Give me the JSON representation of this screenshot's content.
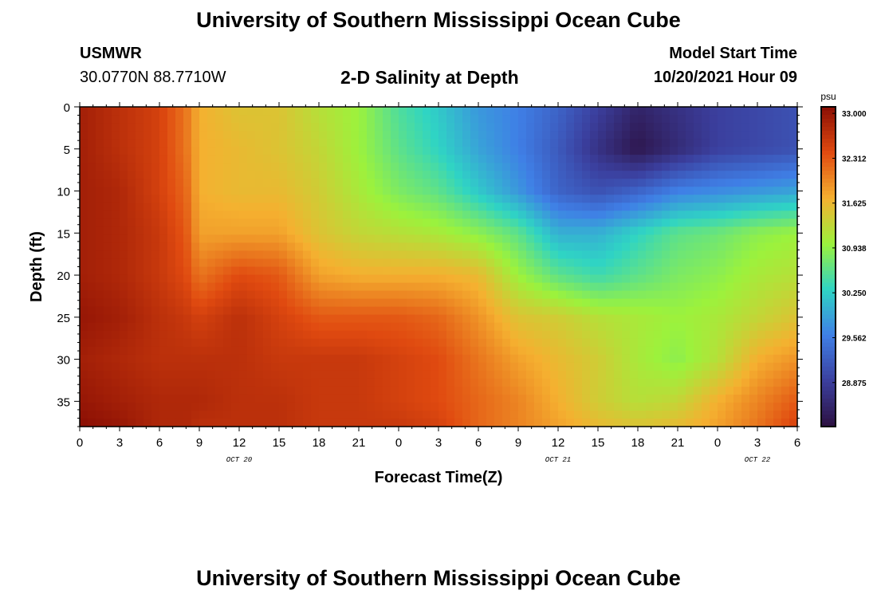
{
  "header": {
    "title": "University of Southern Mississippi Ocean Cube",
    "station": "USMWR",
    "coords": "30.0770N  88.7710W",
    "subtitle": "2-D Salinity at Depth",
    "model_start_label": "Model Start Time",
    "model_start_value": "10/20/2021 Hour 09"
  },
  "footer": {
    "title": "University of Southern Mississippi Ocean Cube"
  },
  "chart_data": {
    "type": "heatmap",
    "title": "2-D Salinity at Depth",
    "xlabel": "Forecast Time(Z)",
    "ylabel": "Depth (ft)",
    "x_ticks": [
      "0",
      "3",
      "6",
      "9",
      "12",
      "15",
      "18",
      "21",
      "0",
      "3",
      "6",
      "9",
      "12",
      "15",
      "18",
      "21",
      "0",
      "3",
      "6"
    ],
    "x_range_hours": [
      0,
      54
    ],
    "date_labels": [
      {
        "label": "OCT 20",
        "hour": 12
      },
      {
        "label": "OCT 21",
        "hour": 36
      },
      {
        "label": "OCT 22",
        "hour": 51
      }
    ],
    "y_ticks": [
      0,
      5,
      10,
      15,
      20,
      25,
      30,
      35
    ],
    "ylim": [
      0,
      38
    ],
    "y_inverted": true,
    "colorbar": {
      "unit": "psu",
      "ticks": [
        "33.000",
        "32.312",
        "31.625",
        "30.938",
        "30.250",
        "29.562",
        "28.875"
      ],
      "range": [
        28.2,
        33.1
      ],
      "colors": [
        "#2c1040",
        "#3b3f9e",
        "#3f7fe6",
        "#2fd4c4",
        "#9cf23c",
        "#f5b030",
        "#e04a10",
        "#8a0e04"
      ]
    },
    "time_hours": [
      0,
      3,
      6,
      8,
      9,
      12,
      15,
      18,
      21,
      24,
      27,
      30,
      33,
      36,
      39,
      42,
      45,
      48,
      51,
      54
    ],
    "depth_ft": [
      0,
      5,
      10,
      15,
      20,
      25,
      30,
      35,
      38
    ],
    "salinity": [
      [
        32.9,
        32.7,
        32.5,
        32.1,
        31.7,
        31.5,
        31.5,
        31.2,
        31.0,
        30.5,
        30.2,
        29.8,
        29.6,
        29.3,
        28.9,
        28.5,
        28.7,
        28.9,
        29.0,
        29.1
      ],
      [
        32.9,
        32.7,
        32.5,
        32.1,
        31.7,
        31.6,
        31.5,
        31.3,
        31.0,
        30.6,
        30.3,
        29.9,
        29.6,
        29.2,
        28.7,
        28.3,
        28.6,
        28.9,
        29.0,
        29.1
      ],
      [
        32.9,
        32.8,
        32.5,
        32.2,
        31.7,
        31.6,
        31.6,
        31.4,
        31.1,
        30.8,
        30.6,
        30.2,
        29.8,
        29.3,
        29.1,
        29.3,
        29.6,
        29.7,
        29.8,
        29.9
      ],
      [
        32.9,
        32.8,
        32.6,
        32.3,
        31.8,
        31.8,
        31.8,
        31.5,
        31.3,
        31.2,
        31.1,
        30.9,
        30.6,
        30.0,
        30.0,
        30.3,
        30.6,
        30.7,
        30.9,
        31.0
      ],
      [
        32.9,
        32.8,
        32.6,
        32.4,
        32.1,
        32.4,
        32.3,
        31.8,
        31.7,
        31.7,
        31.7,
        31.6,
        31.0,
        30.6,
        30.4,
        30.6,
        30.8,
        30.9,
        31.1,
        31.2
      ],
      [
        33.0,
        32.9,
        32.7,
        32.6,
        32.5,
        32.7,
        32.5,
        32.3,
        32.3,
        32.3,
        32.2,
        31.9,
        31.5,
        31.4,
        31.2,
        31.1,
        31.0,
        31.1,
        31.3,
        31.5
      ],
      [
        32.9,
        32.8,
        32.7,
        32.7,
        32.7,
        32.7,
        32.6,
        32.6,
        32.6,
        32.5,
        32.4,
        32.1,
        31.8,
        31.6,
        31.4,
        31.1,
        30.9,
        31.2,
        31.7,
        31.9
      ],
      [
        33.0,
        32.9,
        32.8,
        32.8,
        32.8,
        32.7,
        32.7,
        32.6,
        32.6,
        32.5,
        32.4,
        32.2,
        32.0,
        31.7,
        31.4,
        31.2,
        31.3,
        31.7,
        32.0,
        32.3
      ],
      [
        33.1,
        33.0,
        32.8,
        32.8,
        32.7,
        32.7,
        32.7,
        32.6,
        32.6,
        32.6,
        32.5,
        32.2,
        32.0,
        31.8,
        31.6,
        31.5,
        31.6,
        31.8,
        32.1,
        32.5
      ]
    ]
  }
}
